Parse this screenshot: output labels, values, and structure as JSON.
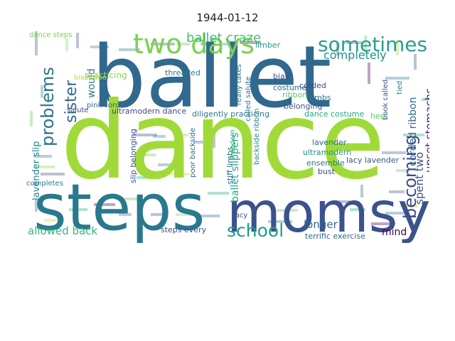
{
  "title": "1944-01-12",
  "words": [
    {
      "text": "ballet",
      "color": "#31688e"
    },
    {
      "text": "dance",
      "color": "#a0da39"
    },
    {
      "text": "steps",
      "color": "#2a788e"
    },
    {
      "text": "momsy",
      "color": "#3b528b"
    },
    {
      "text": "two days",
      "color": "#7ad151"
    },
    {
      "text": "sometimes",
      "color": "#2a9d8f"
    },
    {
      "text": "school",
      "color": "#1f9e89"
    },
    {
      "text": "problems",
      "color": "#2c728e"
    },
    {
      "text": "becoming",
      "color": "#3e4a89"
    },
    {
      "text": "sister",
      "color": "#31688e"
    },
    {
      "text": "ballet craze",
      "color": "#44bf70"
    },
    {
      "text": "completely",
      "color": "#21918c"
    },
    {
      "text": "upset stomachs",
      "color": "#482878"
    },
    {
      "text": "spent two",
      "color": "#3b528b"
    },
    {
      "text": "allowed back",
      "color": "#35b779"
    },
    {
      "text": "longer",
      "color": "#31688e"
    },
    {
      "text": "mind",
      "color": "#440154"
    },
    {
      "text": "would",
      "color": "#2a788e"
    },
    {
      "text": "ballet slippers",
      "color": "#22a884"
    },
    {
      "text": "corded ribbon",
      "color": "#31688e"
    },
    {
      "text": "ribbon corded",
      "color": "#3e4a89"
    },
    {
      "text": "lavender slip",
      "color": "#25848e"
    },
    {
      "text": "practicing",
      "color": "#8fd744"
    },
    {
      "text": "bias tape",
      "color": "#bddf26"
    },
    {
      "text": "pink corded",
      "color": "#31688e"
    },
    {
      "text": "ultramodern dance",
      "color": "#3e4a89"
    },
    {
      "text": "diligently practicing",
      "color": "#2a788e"
    },
    {
      "text": "dance costume",
      "color": "#22a884"
    },
    {
      "text": "slip belonging",
      "color": "#3b528b"
    },
    {
      "text": "stiff limbs",
      "color": "#2c728e"
    },
    {
      "text": "lacy lavender",
      "color": "#3b528b"
    },
    {
      "text": "ultramodern",
      "color": "#21918c"
    },
    {
      "text": "lavender",
      "color": "#31688e"
    },
    {
      "text": "ensemble",
      "color": "#2a788e"
    },
    {
      "text": "bust",
      "color": "#3e4a89"
    },
    {
      "text": "costume",
      "color": "#31688e"
    },
    {
      "text": "belonging",
      "color": "#3b528b"
    },
    {
      "text": "ribbon",
      "color": "#5ec962"
    },
    {
      "text": "corded",
      "color": "#3e4a89"
    },
    {
      "text": "limbs",
      "color": "#2c728e"
    },
    {
      "text": "bias",
      "color": "#3b528b"
    },
    {
      "text": "limber",
      "color": "#1f9e89"
    },
    {
      "text": "threaded",
      "color": "#2a788e"
    },
    {
      "text": "called salute",
      "color": "#2c728e"
    },
    {
      "text": "really takes",
      "color": "#2c728e"
    },
    {
      "text": "backside ribbon",
      "color": "#25848e"
    },
    {
      "text": "freedom",
      "color": "#35b779"
    },
    {
      "text": "poor backside",
      "color": "#31688e"
    },
    {
      "text": "steps every",
      "color": "#3b528b"
    },
    {
      "text": "terrific exercise",
      "color": "#31688e"
    },
    {
      "text": "book called",
      "color": "#3b528b"
    },
    {
      "text": "heel",
      "color": "#5ec962"
    },
    {
      "text": "tied",
      "color": "#2a788e"
    },
    {
      "text": "dance steps",
      "color": "#7ad151"
    },
    {
      "text": "salute",
      "color": "#3e4a89"
    },
    {
      "text": "completes",
      "color": "#2a788e"
    },
    {
      "text": "lacy",
      "color": "#3b528b"
    }
  ]
}
